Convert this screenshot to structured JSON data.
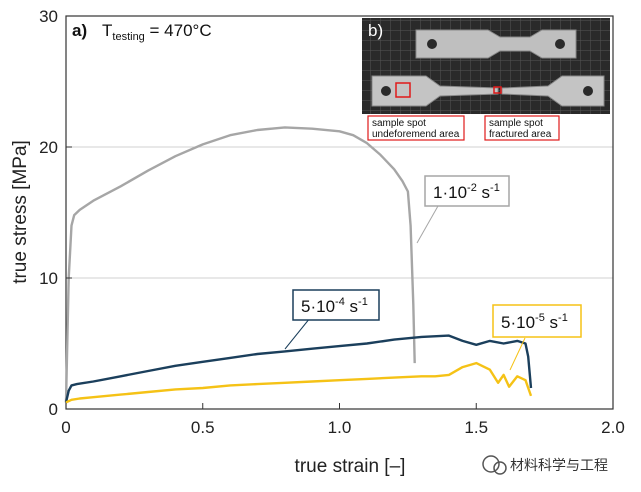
{
  "chart_data": {
    "type": "line",
    "panel_label_a": "a)",
    "panel_label_b": "b)",
    "testing_temperature_label": "T",
    "testing_temperature_sub": "testing",
    "testing_temperature_value": " = 470°C",
    "xlabel": "true strain [–]",
    "ylabel": "true stress [MPa]",
    "xlim": [
      0,
      2.0
    ],
    "ylim": [
      0,
      30
    ],
    "xticks": [
      "0",
      "0.5",
      "1.0",
      "1.5",
      "2.0"
    ],
    "yticks": [
      "0",
      "10",
      "20",
      "30"
    ],
    "grid": "horizontal",
    "series": [
      {
        "name": "1·10⁻² s⁻¹",
        "label_base": "1·10",
        "label_exp": "-2",
        "label_unit": " s",
        "label_unit_exp": "-1",
        "color": "#a6a6a6",
        "x": [
          0.0,
          0.01,
          0.02,
          0.03,
          0.05,
          0.1,
          0.2,
          0.3,
          0.4,
          0.5,
          0.6,
          0.7,
          0.8,
          0.9,
          1.0,
          1.05,
          1.1,
          1.15,
          1.2,
          1.23,
          1.25,
          1.26,
          1.27,
          1.275
        ],
        "y": [
          0.5,
          10.0,
          14.0,
          14.8,
          15.2,
          15.9,
          17.0,
          18.2,
          19.3,
          20.2,
          20.9,
          21.3,
          21.5,
          21.4,
          21.2,
          20.9,
          20.3,
          19.4,
          18.3,
          17.4,
          16.6,
          14.0,
          8.0,
          3.5
        ]
      },
      {
        "name": "5·10⁻⁴ s⁻¹",
        "label_base": "5·10",
        "label_exp": "-4",
        "label_unit": " s",
        "label_unit_exp": "-1",
        "color": "#1b3f5c",
        "x": [
          0.0,
          0.01,
          0.02,
          0.04,
          0.1,
          0.2,
          0.3,
          0.4,
          0.5,
          0.6,
          0.7,
          0.8,
          0.9,
          1.0,
          1.1,
          1.2,
          1.3,
          1.4,
          1.45,
          1.5,
          1.55,
          1.6,
          1.65,
          1.68,
          1.69,
          1.7
        ],
        "y": [
          0.5,
          1.4,
          1.8,
          1.9,
          2.1,
          2.5,
          2.9,
          3.3,
          3.6,
          3.9,
          4.2,
          4.4,
          4.6,
          4.8,
          5.0,
          5.3,
          5.5,
          5.6,
          5.2,
          4.9,
          5.2,
          5.0,
          5.2,
          5.0,
          4.0,
          1.6
        ]
      },
      {
        "name": "5·10⁻⁵ s⁻¹",
        "label_base": "5·10",
        "label_exp": "-5",
        "label_unit": " s",
        "label_unit_exp": "-1",
        "color": "#f5c216",
        "x": [
          0.0,
          0.02,
          0.05,
          0.1,
          0.2,
          0.3,
          0.4,
          0.5,
          0.6,
          0.7,
          0.8,
          0.9,
          1.0,
          1.1,
          1.2,
          1.3,
          1.35,
          1.4,
          1.45,
          1.5,
          1.55,
          1.58,
          1.6,
          1.62,
          1.65,
          1.68,
          1.7
        ],
        "y": [
          0.5,
          0.7,
          0.8,
          0.9,
          1.1,
          1.3,
          1.5,
          1.6,
          1.8,
          1.9,
          2.0,
          2.1,
          2.2,
          2.3,
          2.4,
          2.5,
          2.5,
          2.6,
          3.2,
          3.5,
          3.0,
          2.0,
          2.6,
          1.7,
          2.5,
          2.2,
          1.0
        ]
      }
    ],
    "inset": {
      "caption_left_1": "sample spot",
      "caption_left_2": "undeforemend area",
      "caption_right_1": "sample spot",
      "caption_right_2": "fractured area"
    }
  },
  "watermark": "材料科学与工程"
}
